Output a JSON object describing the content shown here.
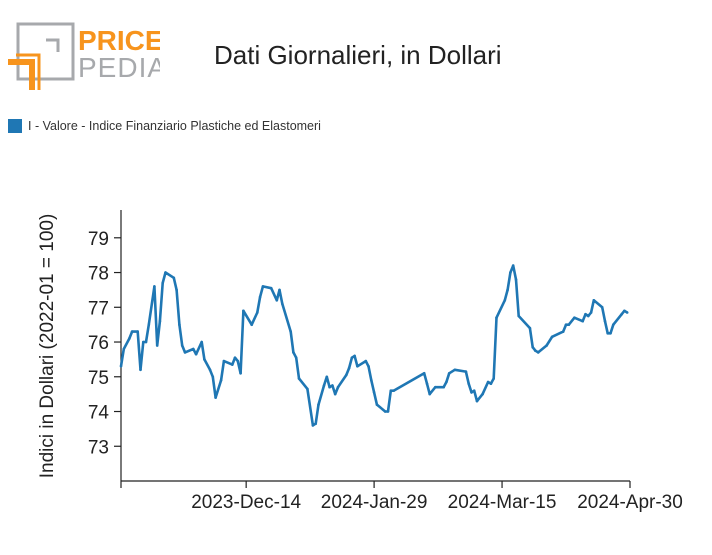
{
  "logo": {
    "line1": "PRICE",
    "line2": "PEDIA",
    "accent_color": "#f7941d",
    "grey_color": "#a7a9ac"
  },
  "header": {
    "title": "Dati Giornalieri, in Dollari"
  },
  "chart_data": {
    "type": "line",
    "title": "Dati Giornalieri, in Dollari",
    "ylabel": "Indici in Dollari (2022-01 = 100)",
    "xlabel": "",
    "ylim": [
      72,
      79.8
    ],
    "xlim": [
      "2023-10-30",
      "2024-04-30"
    ],
    "y_ticks": [
      73,
      74,
      75,
      76,
      77,
      78,
      79
    ],
    "x_ticks": [
      "2023-Dec-14",
      "2024-Jan-29",
      "2024-Mar-15",
      "2024-Apr-30"
    ],
    "x_tick_dates": [
      "2023-12-14",
      "2024-01-29",
      "2024-03-15",
      "2024-04-30"
    ],
    "grid": false,
    "legend_position": "top-left",
    "series": [
      {
        "name": "I - Valore - Indice Finanziario Plastiche ed Elastomeri",
        "color": "#1f77b4",
        "points": [
          [
            "2023-10-30",
            75.3
          ],
          [
            "2023-10-31",
            75.8
          ],
          [
            "2023-11-02",
            76.1
          ],
          [
            "2023-11-03",
            76.3
          ],
          [
            "2023-11-05",
            76.3
          ],
          [
            "2023-11-06",
            75.2
          ],
          [
            "2023-11-07",
            76.0
          ],
          [
            "2023-11-08",
            76.0
          ],
          [
            "2023-11-09",
            76.5
          ],
          [
            "2023-11-11",
            77.6
          ],
          [
            "2023-11-12",
            75.9
          ],
          [
            "2023-11-13",
            76.6
          ],
          [
            "2023-11-14",
            77.7
          ],
          [
            "2023-11-15",
            78.0
          ],
          [
            "2023-11-18",
            77.85
          ],
          [
            "2023-11-19",
            77.5
          ],
          [
            "2023-11-20",
            76.5
          ],
          [
            "2023-11-21",
            75.9
          ],
          [
            "2023-11-22",
            75.7
          ],
          [
            "2023-11-25",
            75.8
          ],
          [
            "2023-11-26",
            75.65
          ],
          [
            "2023-11-28",
            76.0
          ],
          [
            "2023-11-29",
            75.5
          ],
          [
            "2023-12-01",
            75.2
          ],
          [
            "2023-12-02",
            75.0
          ],
          [
            "2023-12-03",
            74.4
          ],
          [
            "2023-12-05",
            74.9
          ],
          [
            "2023-12-06",
            75.45
          ],
          [
            "2023-12-09",
            75.35
          ],
          [
            "2023-12-10",
            75.55
          ],
          [
            "2023-12-11",
            75.45
          ],
          [
            "2023-12-12",
            75.1
          ],
          [
            "2023-12-13",
            76.9
          ],
          [
            "2023-12-16",
            76.5
          ],
          [
            "2023-12-18",
            76.85
          ],
          [
            "2023-12-19",
            77.3
          ],
          [
            "2023-12-20",
            77.6
          ],
          [
            "2023-12-23",
            77.55
          ],
          [
            "2023-12-25",
            77.2
          ],
          [
            "2023-12-26",
            77.5
          ],
          [
            "2023-12-27",
            77.1
          ],
          [
            "2023-12-30",
            76.3
          ],
          [
            "2023-12-31",
            75.7
          ],
          [
            "2024-01-01",
            75.55
          ],
          [
            "2024-01-02",
            74.95
          ],
          [
            "2024-01-05",
            74.65
          ],
          [
            "2024-01-07",
            73.6
          ],
          [
            "2024-01-08",
            73.65
          ],
          [
            "2024-01-09",
            74.2
          ],
          [
            "2024-01-11",
            74.75
          ],
          [
            "2024-01-12",
            75.0
          ],
          [
            "2024-01-13",
            74.7
          ],
          [
            "2024-01-14",
            74.75
          ],
          [
            "2024-01-15",
            74.5
          ],
          [
            "2024-01-16",
            74.7
          ],
          [
            "2024-01-19",
            75.05
          ],
          [
            "2024-01-20",
            75.25
          ],
          [
            "2024-01-21",
            75.55
          ],
          [
            "2024-01-22",
            75.6
          ],
          [
            "2024-01-23",
            75.3
          ],
          [
            "2024-01-26",
            75.45
          ],
          [
            "2024-01-27",
            75.3
          ],
          [
            "2024-01-28",
            74.9
          ],
          [
            "2024-01-29",
            74.55
          ],
          [
            "2024-01-30",
            74.2
          ],
          [
            "2024-02-02",
            74.0
          ],
          [
            "2024-02-03",
            74.0
          ],
          [
            "2024-02-04",
            74.6
          ],
          [
            "2024-02-05",
            74.6
          ],
          [
            "2024-02-16",
            75.1
          ],
          [
            "2024-02-17",
            74.8
          ],
          [
            "2024-02-18",
            74.5
          ],
          [
            "2024-02-20",
            74.7
          ],
          [
            "2024-02-23",
            74.7
          ],
          [
            "2024-02-24",
            74.85
          ],
          [
            "2024-02-25",
            75.1
          ],
          [
            "2024-02-27",
            75.2
          ],
          [
            "2024-03-02",
            75.15
          ],
          [
            "2024-03-03",
            74.8
          ],
          [
            "2024-03-04",
            74.55
          ],
          [
            "2024-03-05",
            74.6
          ],
          [
            "2024-03-06",
            74.3
          ],
          [
            "2024-03-08",
            74.5
          ],
          [
            "2024-03-10",
            74.85
          ],
          [
            "2024-03-11",
            74.8
          ],
          [
            "2024-03-12",
            74.95
          ],
          [
            "2024-03-13",
            76.7
          ],
          [
            "2024-03-16",
            77.2
          ],
          [
            "2024-03-17",
            77.5
          ],
          [
            "2024-03-18",
            78.0
          ],
          [
            "2024-03-19",
            78.2
          ],
          [
            "2024-03-20",
            77.8
          ],
          [
            "2024-03-21",
            76.75
          ],
          [
            "2024-03-25",
            76.4
          ],
          [
            "2024-03-26",
            75.85
          ],
          [
            "2024-03-27",
            75.75
          ],
          [
            "2024-03-28",
            75.7
          ],
          [
            "2024-03-31",
            75.9
          ],
          [
            "2024-04-02",
            76.15
          ],
          [
            "2024-04-06",
            76.3
          ],
          [
            "2024-04-07",
            76.5
          ],
          [
            "2024-04-08",
            76.5
          ],
          [
            "2024-04-10",
            76.7
          ],
          [
            "2024-04-13",
            76.6
          ],
          [
            "2024-04-14",
            76.8
          ],
          [
            "2024-04-15",
            76.75
          ],
          [
            "2024-04-16",
            76.85
          ],
          [
            "2024-04-17",
            77.2
          ],
          [
            "2024-04-20",
            77.0
          ],
          [
            "2024-04-21",
            76.6
          ],
          [
            "2024-04-22",
            76.25
          ],
          [
            "2024-04-23",
            76.25
          ],
          [
            "2024-04-24",
            76.5
          ],
          [
            "2024-04-27",
            76.8
          ],
          [
            "2024-04-28",
            76.9
          ],
          [
            "2024-04-29",
            76.85
          ]
        ]
      }
    ]
  }
}
